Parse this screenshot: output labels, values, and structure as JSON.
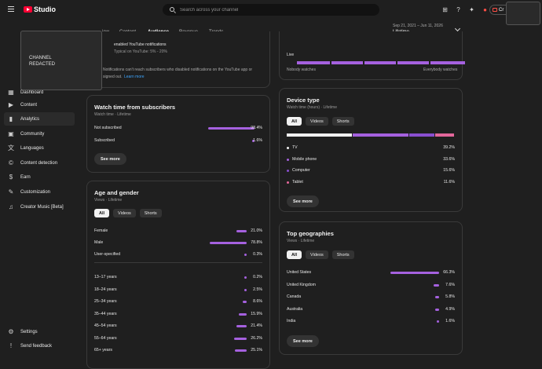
{
  "app": {
    "logo_text": "Studio"
  },
  "search": {
    "placeholder": "Search across your channel"
  },
  "create": {
    "label": "Cr"
  },
  "channel": {
    "name": "CHANNEL\nREDACTED"
  },
  "sidebar": {
    "items": [
      {
        "label": "Dashboard",
        "icon": "dashboard-icon"
      },
      {
        "label": "Content",
        "icon": "content-icon"
      },
      {
        "label": "Analytics",
        "icon": "analytics-icon"
      },
      {
        "label": "Community",
        "icon": "community-icon"
      },
      {
        "label": "Languages",
        "icon": "languages-icon"
      },
      {
        "label": "Content detection",
        "icon": "copyright-icon"
      },
      {
        "label": "Earn",
        "icon": "earn-icon"
      },
      {
        "label": "Customization",
        "icon": "customization-icon"
      },
      {
        "label": "Creator Music [Beta]",
        "icon": "music-icon"
      }
    ],
    "bottom": [
      {
        "label": "Settings",
        "icon": "settings-icon"
      },
      {
        "label": "Send feedback",
        "icon": "feedback-icon"
      }
    ]
  },
  "tabs": [
    "iew",
    "Content",
    "Audience",
    "Revenue",
    "Trends"
  ],
  "date": {
    "range": "Sep 21, 2021 – Jun 11, 2026",
    "label": "Lifetime"
  },
  "notif_card": {
    "line1": "enabled YouTube notifications",
    "line2": "Typical on YouTube: 5% - 20%",
    "line3": "Notifications can't reach subscribers who disabled notifications on the YouTube app or",
    "line4": "signed out.",
    "learn_more": "Learn more"
  },
  "live_card": {
    "label": "Live",
    "left": "Nobody watches",
    "right": "Everybody watches"
  },
  "watch_time": {
    "title": "Watch time from subscribers",
    "sub": "Watch time · Lifetime",
    "rows": [
      {
        "label": "Not subscribed",
        "value": "98.4%",
        "pct": 98.4
      },
      {
        "label": "Subscribed",
        "value": "1.6%",
        "pct": 1.6
      }
    ],
    "see_more": "See more"
  },
  "age_gender": {
    "title": "Age and gender",
    "sub": "Views · Lifetime",
    "chips": [
      "All",
      "Videos",
      "Shorts"
    ],
    "gender": [
      {
        "label": "Female",
        "value": "21.0%",
        "pct": 21.0
      },
      {
        "label": "Male",
        "value": "78.8%",
        "pct": 78.8
      },
      {
        "label": "User-specified",
        "value": "0.3%",
        "pct": 0.3
      }
    ],
    "ages": [
      {
        "label": "13–17 years",
        "value": "0.2%",
        "pct": 0.2
      },
      {
        "label": "18–24 years",
        "value": "2.5%",
        "pct": 2.5
      },
      {
        "label": "25–34 years",
        "value": "8.6%",
        "pct": 8.6
      },
      {
        "label": "35–44 years",
        "value": "15.9%",
        "pct": 15.9
      },
      {
        "label": "45–54 years",
        "value": "21.4%",
        "pct": 21.4
      },
      {
        "label": "55–64 years",
        "value": "26.2%",
        "pct": 26.2
      },
      {
        "label": "65+ years",
        "value": "25.1%",
        "pct": 25.1
      }
    ]
  },
  "device": {
    "title": "Device type",
    "sub": "Watch time (hours) · Lifetime",
    "chips": [
      "All",
      "Videos",
      "Shorts"
    ],
    "rows": [
      {
        "label": "TV",
        "value": "39.2%",
        "pct": 39.2,
        "color": "#f1f1f1"
      },
      {
        "label": "Mobile phone",
        "value": "33.6%",
        "pct": 33.6,
        "color": "#a561df"
      },
      {
        "label": "Computer",
        "value": "15.6%",
        "pct": 15.6,
        "color": "#8a4fd0"
      },
      {
        "label": "Tablet",
        "value": "11.6%",
        "pct": 11.6,
        "color": "#e3679b"
      }
    ],
    "see_more": "See more"
  },
  "geo": {
    "title": "Top geographies",
    "sub": "Views · Lifetime",
    "chips": [
      "All",
      "Videos",
      "Shorts"
    ],
    "rows": [
      {
        "label": "United States",
        "value": "66.3%",
        "pct": 66.3
      },
      {
        "label": "United Kingdom",
        "value": "7.6%",
        "pct": 7.6
      },
      {
        "label": "Canada",
        "value": "5.8%",
        "pct": 5.8
      },
      {
        "label": "Australia",
        "value": "4.9%",
        "pct": 4.9
      },
      {
        "label": "India",
        "value": "1.6%",
        "pct": 1.6
      }
    ],
    "see_more": "See more"
  },
  "colors": {
    "accent": "#a561df",
    "brand": "#ff0033"
  }
}
